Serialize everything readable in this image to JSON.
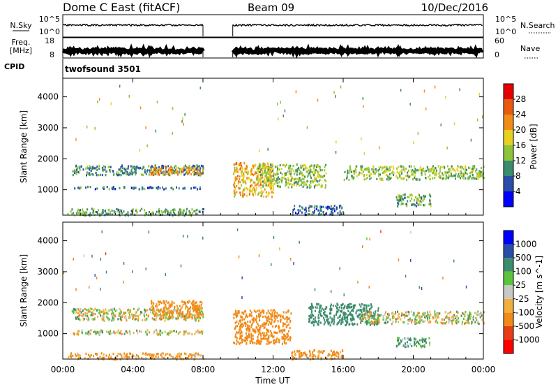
{
  "header": {
    "station": "Dome C East (fitACF)",
    "beam": "Beam 09",
    "date": "10/Dec/2016"
  },
  "params": {
    "nsky_label": "N.Sky",
    "nsky_ticks": [
      "10^5",
      "10^0"
    ],
    "nsearch_label": "N.Search",
    "nsearch_ticks": [
      "10^5",
      "10^0"
    ],
    "freq_label": "Freq.",
    "freq_unit": "[MHz]",
    "freq_ticks": [
      "18",
      "8"
    ],
    "nave_label": "Nave",
    "nave_ticks": [
      "60",
      "0"
    ],
    "cpid_label": "CPID",
    "cpid_value": "twofsound 3501"
  },
  "colors": {
    "power": [
      "#0000ff",
      "#2a4da8",
      "#3c8c6e",
      "#8dc43a",
      "#e8d020",
      "#f08c1a",
      "#e85a10",
      "#e80000"
    ],
    "velocity": [
      "#ff0000",
      "#e83c18",
      "#f08a18",
      "#f0b040",
      "#c8c8c8",
      "#5cc43c",
      "#3c8c6e",
      "#2a4da8",
      "#0000ff"
    ]
  },
  "chart_data": [
    {
      "type": "heatmap",
      "name": "power",
      "xlabel": "",
      "ylabel": "Slant Range [km]",
      "x_ticks": [
        "00:00",
        "04:00",
        "08:00",
        "12:00",
        "16:00",
        "20:00",
        "00:00"
      ],
      "x_range_hours": [
        0,
        24
      ],
      "yticks": [
        1000,
        2000,
        3000,
        4000
      ],
      "ylim": [
        180,
        4600
      ],
      "colorbar": {
        "label": "Power [dB]",
        "ticks": [
          4,
          8,
          12,
          16,
          20,
          24,
          28
        ],
        "range": [
          0,
          32
        ]
      },
      "gaps_hours": [
        [
          8.0,
          9.7
        ]
      ],
      "regions": [
        {
          "t": [
            0.5,
            8.0
          ],
          "r": [
            1500,
            1820
          ],
          "level": 10
        },
        {
          "t": [
            5.0,
            8.0
          ],
          "r": [
            1520,
            1780
          ],
          "level": 22
        },
        {
          "t": [
            0.5,
            8.0
          ],
          "r": [
            1050,
            1130
          ],
          "level": 8
        },
        {
          "t": [
            0.2,
            8.0
          ],
          "r": [
            200,
            420
          ],
          "level": 12
        },
        {
          "t": [
            9.7,
            12.0
          ],
          "r": [
            800,
            1900
          ],
          "level": 20
        },
        {
          "t": [
            11.0,
            15.0
          ],
          "r": [
            1100,
            1850
          ],
          "level": 14
        },
        {
          "t": [
            13.0,
            16.0
          ],
          "r": [
            220,
            520
          ],
          "level": 8
        },
        {
          "t": [
            16.0,
            24.0
          ],
          "r": [
            1350,
            1800
          ],
          "level": 14
        },
        {
          "t": [
            19.0,
            21.0
          ],
          "r": [
            500,
            900
          ],
          "level": 12
        }
      ]
    },
    {
      "type": "heatmap",
      "name": "velocity",
      "xlabel": "Time UT",
      "ylabel": "Slant Range [km]",
      "x_ticks": [
        "00:00",
        "04:00",
        "08:00",
        "12:00",
        "16:00",
        "20:00",
        "00:00"
      ],
      "x_range_hours": [
        0,
        24
      ],
      "yticks": [
        1000,
        2000,
        3000,
        4000
      ],
      "ylim": [
        180,
        4600
      ],
      "colorbar": {
        "label": "Velocity [m s^-1]",
        "ticks": [
          1000,
          500,
          100,
          25,
          -25,
          -100,
          -500,
          -1000
        ]
      },
      "gaps_hours": [
        [
          8.0,
          9.7
        ]
      ],
      "regions": [
        {
          "t": [
            0.5,
            8.0
          ],
          "r": [
            1450,
            1850
          ],
          "level": 0
        },
        {
          "t": [
            5.0,
            8.0
          ],
          "r": [
            1500,
            2100
          ],
          "level": -200
        },
        {
          "t": [
            0.5,
            8.0
          ],
          "r": [
            1000,
            1150
          ],
          "level": 0
        },
        {
          "t": [
            0.2,
            8.0
          ],
          "r": [
            200,
            400
          ],
          "level": -150
        },
        {
          "t": [
            9.7,
            13.0
          ],
          "r": [
            700,
            1800
          ],
          "level": -300
        },
        {
          "t": [
            13.0,
            16.0
          ],
          "r": [
            200,
            500
          ],
          "level": -200
        },
        {
          "t": [
            14.0,
            18.0
          ],
          "r": [
            1300,
            2000
          ],
          "level": 300
        },
        {
          "t": [
            17.0,
            24.0
          ],
          "r": [
            1350,
            1750
          ],
          "level": 0
        },
        {
          "t": [
            19.0,
            21.0
          ],
          "r": [
            600,
            900
          ],
          "level": 150
        }
      ]
    }
  ]
}
